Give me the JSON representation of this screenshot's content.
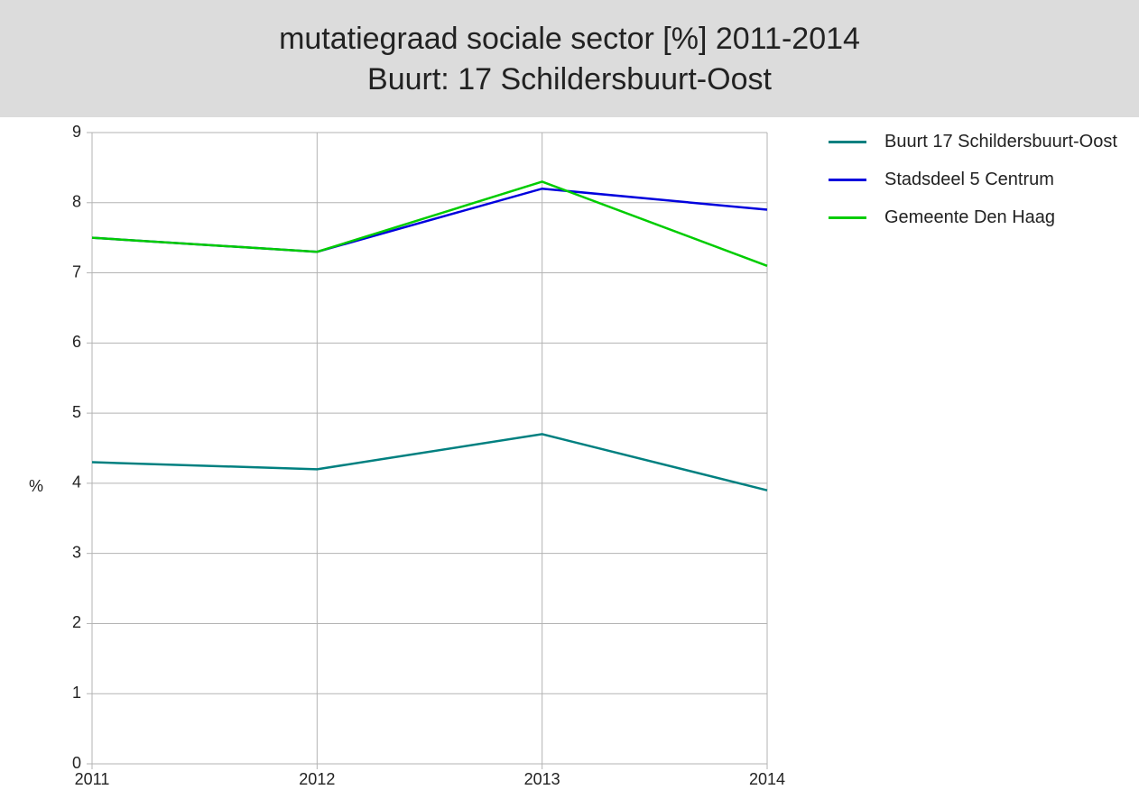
{
  "chart_data": {
    "type": "line",
    "title": "mutatiegraad sociale sector [%] 2011-2014",
    "subtitle": "Buurt: 17 Schildersbuurt-Oost",
    "y_label": "%",
    "x": [
      2011,
      2012,
      2013,
      2014
    ],
    "xlim": [
      2011,
      2014
    ],
    "xticks": [
      2011,
      2012,
      2013,
      2014
    ],
    "ylim": [
      0,
      9
    ],
    "yticks": [
      0,
      1,
      2,
      3,
      4,
      5,
      6,
      7,
      8,
      9
    ],
    "grid": true,
    "legend": "right",
    "series": [
      {
        "name": "Buurt 17 Schildersbuurt-Oost",
        "color": "#008080",
        "values": [
          4.3,
          4.2,
          4.7,
          3.9
        ]
      },
      {
        "name": "Stadsdeel 5 Centrum",
        "color": "#0000dd",
        "values": [
          7.5,
          7.3,
          8.2,
          7.9
        ]
      },
      {
        "name": "Gemeente Den Haag",
        "color": "#00cc00",
        "values": [
          7.5,
          7.3,
          8.3,
          7.1
        ]
      }
    ]
  }
}
